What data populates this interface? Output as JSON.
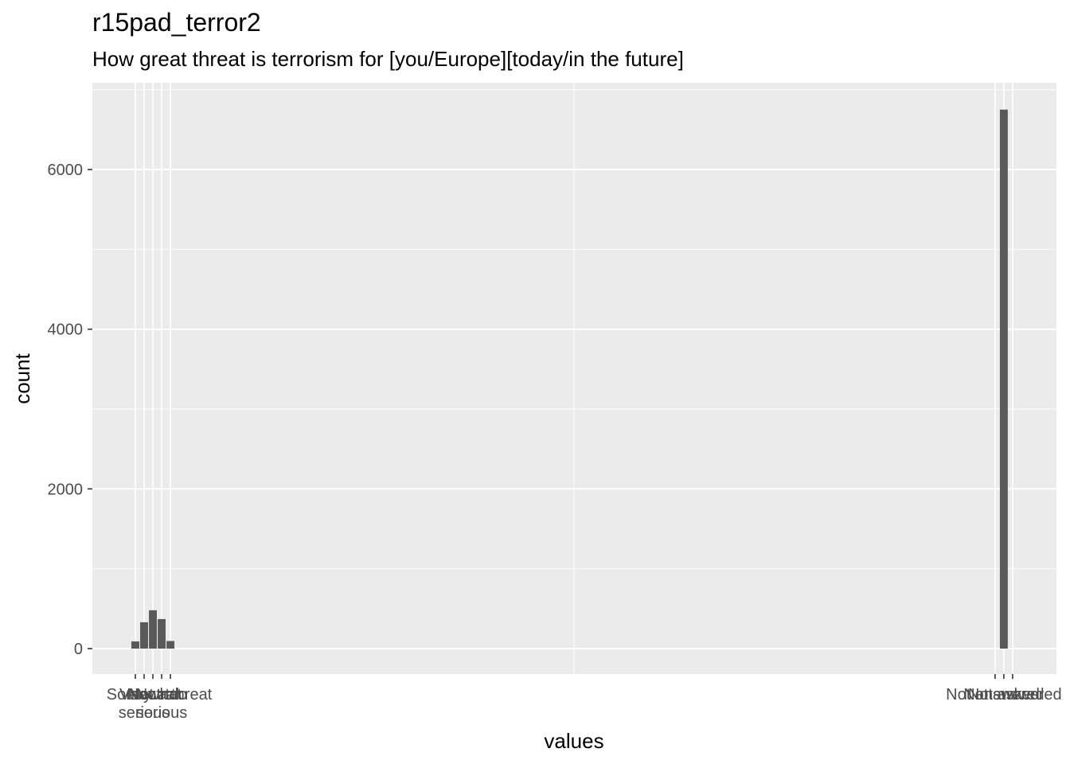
{
  "title": "r15pad_terror2",
  "subtitle": "How great threat is terrorism for [you/Europe][today/in the future]",
  "chart_data": {
    "type": "bar",
    "xlabel": "values",
    "ylabel": "count",
    "ylim": [
      0,
      7000
    ],
    "y_ticks": [
      0,
      2000,
      4000,
      6000
    ],
    "y_tick_labels": [
      "0",
      "2000",
      "4000",
      "6000"
    ],
    "grid": true,
    "x_positions": [
      1,
      2,
      3,
      4,
      5,
      99,
      100,
      101
    ],
    "xlim": [
      -3.9,
      106
    ],
    "categories": [
      "Very serious",
      "Somewhat serious",
      "Neutral",
      "Not too serious",
      "Not a threat",
      "Not answered",
      "Not asked",
      "Not answered"
    ],
    "tick_text": [
      [
        "Very"
      ],
      [
        "Somewhat",
        "serious"
      ],
      [
        "Neutral"
      ],
      [
        "Not too",
        "serious"
      ],
      [
        "Not a threat"
      ],
      [
        "Not answered"
      ],
      [
        "Not asked"
      ],
      [
        "Not answered"
      ]
    ],
    "values": [
      90,
      330,
      480,
      370,
      95,
      0,
      6750,
      0
    ],
    "bar_color": "#595959",
    "panel_color": "#ebebeb",
    "grid_color": "#ffffff"
  }
}
